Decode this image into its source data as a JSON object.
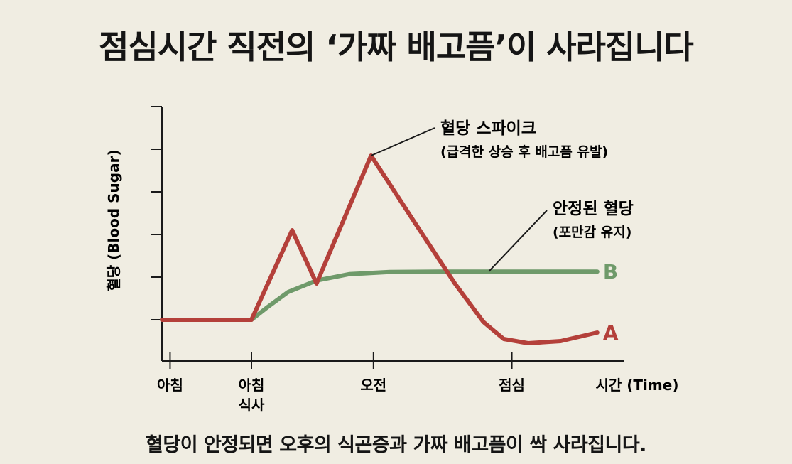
{
  "title": "점심시간 직전의 ‘가짜 배고픔’이 사라집니다",
  "footer": "혈당이 안정되면 오후의 식곤증과 가짜 배고픔이 싹 사라집니다.",
  "colors": {
    "series_a": "#b4403a",
    "series_b": "#6f9a6a",
    "axis": "#1a1a1a",
    "background": "#f0ede2"
  },
  "chart_data": {
    "type": "line",
    "ylabel": "혈당 (Blood Sugar)",
    "xlabel": "시간 (Time)",
    "x_ticks": [
      {
        "x": 0,
        "lines": [
          "아침"
        ]
      },
      {
        "x": 1,
        "lines": [
          "아침",
          "식사"
        ]
      },
      {
        "x": 2.5,
        "lines": [
          "오전"
        ]
      },
      {
        "x": 4.2,
        "lines": [
          "점심"
        ]
      }
    ],
    "xlim": [
      -0.1,
      5.4
    ],
    "ylim": [
      0,
      6
    ],
    "y_ticks": [
      1,
      2,
      3,
      4,
      5,
      6
    ],
    "grid": false,
    "series": [
      {
        "name": "A",
        "color": "#b4403a",
        "points": [
          [
            -0.1,
            1.0
          ],
          [
            1.0,
            1.0
          ],
          [
            1.5,
            3.1
          ],
          [
            1.8,
            1.85
          ],
          [
            2.47,
            4.85
          ],
          [
            3.0,
            3.3
          ],
          [
            3.5,
            1.85
          ],
          [
            3.85,
            0.95
          ],
          [
            4.1,
            0.55
          ],
          [
            4.4,
            0.45
          ],
          [
            4.8,
            0.5
          ],
          [
            5.25,
            0.7
          ]
        ]
      },
      {
        "name": "B",
        "color": "#6f9a6a",
        "points": [
          [
            -0.1,
            1.0
          ],
          [
            1.0,
            1.0
          ],
          [
            1.2,
            1.3
          ],
          [
            1.45,
            1.65
          ],
          [
            1.8,
            1.92
          ],
          [
            2.2,
            2.07
          ],
          [
            2.7,
            2.12
          ],
          [
            3.3,
            2.13
          ],
          [
            5.25,
            2.13
          ]
        ]
      }
    ],
    "annotations": [
      {
        "target": "A",
        "title": "혈당 스파이크",
        "subtitle": "(급격한 상승 후 배고픔 유발)"
      },
      {
        "target": "B",
        "title": "안정된 혈당",
        "subtitle": "(포만감 유지)"
      }
    ]
  }
}
